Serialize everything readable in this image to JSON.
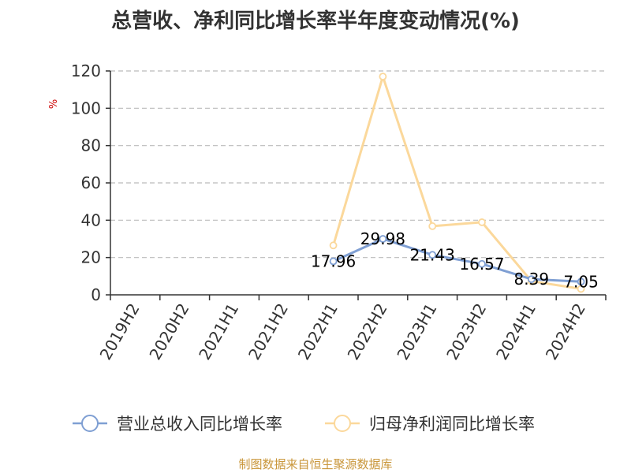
{
  "title": "总营收、净利同比增长率半年度变动情况(%)",
  "footer": "制图数据来自恒生聚源数据库",
  "chart_data": {
    "type": "line",
    "title": "总营收、净利同比增长率半年度变动情况(%)",
    "categories": [
      "2019H2",
      "2020H2",
      "2021H1",
      "2021H2",
      "2022H1",
      "2022H2",
      "2023H1",
      "2023H2",
      "2024H1",
      "2024H2"
    ],
    "ylabel": "%",
    "ylim": [
      0,
      120
    ],
    "yticks": [
      0,
      20,
      40,
      60,
      80,
      100,
      120
    ],
    "grid": true,
    "legend_position": "bottom",
    "series": [
      {
        "name": "营业总收入同比增长率",
        "color": "#7f9fd3",
        "values": [
          null,
          null,
          null,
          null,
          17.96,
          29.98,
          21.43,
          16.57,
          8.39,
          7.05
        ],
        "labels": [
          null,
          null,
          null,
          null,
          "17.96",
          "29.98",
          "21.43",
          "16.57",
          "8.39",
          "7.05"
        ]
      },
      {
        "name": "归母净利润同比增长率",
        "color": "#fbd89b",
        "values": [
          null,
          null,
          null,
          null,
          26.5,
          117.0,
          36.8,
          38.9,
          7.3,
          3.2
        ],
        "labels": [
          null,
          null,
          null,
          null,
          null,
          null,
          null,
          null,
          null,
          null
        ]
      }
    ]
  }
}
